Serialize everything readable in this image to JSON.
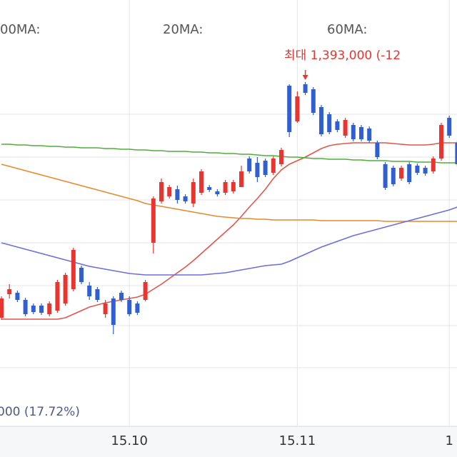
{
  "chart_data": {
    "type": "candlestick",
    "ma_labels": [
      "00MA:",
      "20MA:",
      "60MA:"
    ],
    "max_annotation": "최대 1,393,000 (-12",
    "min_annotation": "000 (17.72%)",
    "up_color": "#e8352f",
    "down_color": "#2f5fd0",
    "ylim": [
      1000000,
      1500000
    ],
    "categories": [
      null,
      null,
      null,
      null,
      null,
      null,
      null,
      null,
      null,
      null,
      null,
      null,
      null,
      null,
      null,
      null,
      "15.10",
      null,
      null,
      null,
      null,
      null,
      null,
      null,
      null,
      null,
      null,
      null,
      null,
      null,
      null,
      null,
      null,
      null,
      null,
      null,
      null,
      "15.11",
      null,
      null,
      null,
      null,
      null,
      null,
      null,
      null,
      null,
      null,
      null,
      null,
      null,
      null,
      null,
      null,
      null,
      null,
      "1",
      null
    ],
    "open": [
      1063000,
      1096000,
      1098000,
      1088000,
      1080000,
      1080000,
      1068000,
      1073000,
      1083000,
      1103000,
      1133000,
      1108000,
      1103000,
      1068000,
      1090000,
      1098000,
      1088000,
      1083000,
      1088000,
      1168000,
      1226000,
      1233000,
      1243000,
      1233000,
      1223000,
      1238000,
      1246000,
      1240000,
      1238000,
      1240000,
      1246000,
      1286000,
      1280000,
      1283000,
      1266000,
      1278000,
      1388000,
      1338000,
      1390000,
      1383000,
      1358000,
      1348000,
      1338000,
      1318000,
      1333000,
      1330000,
      1328000,
      1308000,
      1278000,
      1273000,
      1258000,
      1278000,
      1276000,
      1273000,
      1268000,
      1286000,
      1343000,
      1308000
    ],
    "high": [
      1093000,
      1110000,
      1101000,
      1091000,
      1083000,
      1083000,
      1086000,
      1116000,
      1126000,
      1161000,
      1136000,
      1113000,
      1106000,
      1088000,
      1093000,
      1101000,
      1093000,
      1086000,
      1116000,
      1233000,
      1258000,
      1249000,
      1248000,
      1236000,
      1258000,
      1271000,
      1249000,
      1243000,
      1256000,
      1256000,
      1276000,
      1289000,
      1288000,
      1286000,
      1289000,
      1301000,
      1390000,
      1380000,
      1393000,
      1386000,
      1361000,
      1351000,
      1341000,
      1343000,
      1336000,
      1333000,
      1331000,
      1311000,
      1281000,
      1276000,
      1276000,
      1281000,
      1279000,
      1276000,
      1289000,
      1336000,
      1346000,
      1311000
    ],
    "low": [
      1060000,
      1090000,
      1085000,
      1065000,
      1068000,
      1067000,
      1065000,
      1070000,
      1080000,
      1100000,
      1110000,
      1088000,
      1085000,
      1063000,
      1040000,
      1085000,
      1065000,
      1067000,
      1086000,
      1153000,
      1223000,
      1230000,
      1223000,
      1223000,
      1218000,
      1235000,
      1239000,
      1233000,
      1235000,
      1237000,
      1246000,
      1265000,
      1253000,
      1260000,
      1263000,
      1275000,
      1316000,
      1336000,
      1375000,
      1347000,
      1317000,
      1320000,
      1323000,
      1315000,
      1310000,
      1310000,
      1308000,
      1285000,
      1242000,
      1247000,
      1255000,
      1250000,
      1263000,
      1262000,
      1265000,
      1283000,
      1315000,
      1275000
    ],
    "close": [
      1090000,
      1103000,
      1088000,
      1068000,
      1071000,
      1070000,
      1083000,
      1113000,
      1123000,
      1158000,
      1113000,
      1093000,
      1088000,
      1083000,
      1053000,
      1088000,
      1068000,
      1070000,
      1113000,
      1230000,
      1253000,
      1246000,
      1228000,
      1226000,
      1253000,
      1268000,
      1242000,
      1236000,
      1253000,
      1253000,
      1268000,
      1268000,
      1260000,
      1263000,
      1286000,
      1298000,
      1323000,
      1373000,
      1378000,
      1350000,
      1320000,
      1323000,
      1326000,
      1340000,
      1313000,
      1313000,
      1311000,
      1288000,
      1245000,
      1250000,
      1273000,
      1253000,
      1266000,
      1265000,
      1286000,
      1333000,
      1318000,
      1278000
    ],
    "series": [
      {
        "color": "#e0574a",
        "values": [
          1061000,
          1061000,
          1061000,
          1061000,
          1061000,
          1061000,
          1061000,
          1061000,
          1063000,
          1068000,
          1073000,
          1078000,
          1081000,
          1084000,
          1086000,
          1088000,
          1090000,
          1092000,
          1096000,
          1103000,
          1110000,
          1118000,
          1126000,
          1134000,
          1143000,
          1153000,
          1163000,
          1173000,
          1183000,
          1193000,
          1205000,
          1218000,
          1230000,
          1243000,
          1258000,
          1270000,
          1278000,
          1283000,
          1288000,
          1294000,
          1300000,
          1304000,
          1306000,
          1307000,
          1308000,
          1308000,
          1308000,
          1308000,
          1308000,
          1307000,
          1306000,
          1305000,
          1305000,
          1305000,
          1306000,
          1308000,
          1308000,
          1308000
        ]
      },
      {
        "color": "#4fae3a",
        "values": [
          1306000,
          1306000,
          1305000,
          1305000,
          1304000,
          1304000,
          1303000,
          1303000,
          1302000,
          1302000,
          1301000,
          1301000,
          1301000,
          1300000,
          1300000,
          1299000,
          1299000,
          1298000,
          1298000,
          1297000,
          1297000,
          1296000,
          1296000,
          1296000,
          1295000,
          1295000,
          1294000,
          1294000,
          1293000,
          1293000,
          1292000,
          1292000,
          1291000,
          1290000,
          1290000,
          1289000,
          1288000,
          1288000,
          1287000,
          1286000,
          1286000,
          1285000,
          1285000,
          1285000,
          1284000,
          1284000,
          1283000,
          1283000,
          1283000,
          1282000,
          1282000,
          1282000,
          1281000,
          1281000,
          1281000,
          1280000,
          1280000,
          1280000
        ]
      },
      {
        "color": "#e8892a",
        "values": [
          1278000,
          1275000,
          1272000,
          1269000,
          1266000,
          1263000,
          1260000,
          1257000,
          1254000,
          1251000,
          1248000,
          1245000,
          1242000,
          1239000,
          1236000,
          1233000,
          1230000,
          1227000,
          1223000,
          1221000,
          1219000,
          1217000,
          1215000,
          1213000,
          1211000,
          1209000,
          1207000,
          1205000,
          1204000,
          1203000,
          1202000,
          1202000,
          1201000,
          1201000,
          1200000,
          1200000,
          1200000,
          1200000,
          1200000,
          1200000,
          1199000,
          1199000,
          1199000,
          1199000,
          1199000,
          1199000,
          1199000,
          1199000,
          1198000,
          1198000,
          1198000,
          1198000,
          1198000,
          1198000,
          1198000,
          1198000,
          1198000,
          1198000
        ]
      },
      {
        "color": "#6a6ee0",
        "values": [
          1168000,
          1165000,
          1162000,
          1159000,
          1156000,
          1153000,
          1150000,
          1147000,
          1144000,
          1141000,
          1138000,
          1135000,
          1133000,
          1131000,
          1129000,
          1127000,
          1125000,
          1124000,
          1123000,
          1123000,
          1123000,
          1123000,
          1123000,
          1123000,
          1123000,
          1123000,
          1124000,
          1125000,
          1126000,
          1128000,
          1130000,
          1132000,
          1134000,
          1136000,
          1137000,
          1138000,
          1142000,
          1147000,
          1152000,
          1157000,
          1162000,
          1166000,
          1170000,
          1174000,
          1178000,
          1181000,
          1184000,
          1187000,
          1190000,
          1193000,
          1196000,
          1199000,
          1202000,
          1205000,
          1208000,
          1211000,
          1214000,
          1218000
        ]
      }
    ]
  }
}
